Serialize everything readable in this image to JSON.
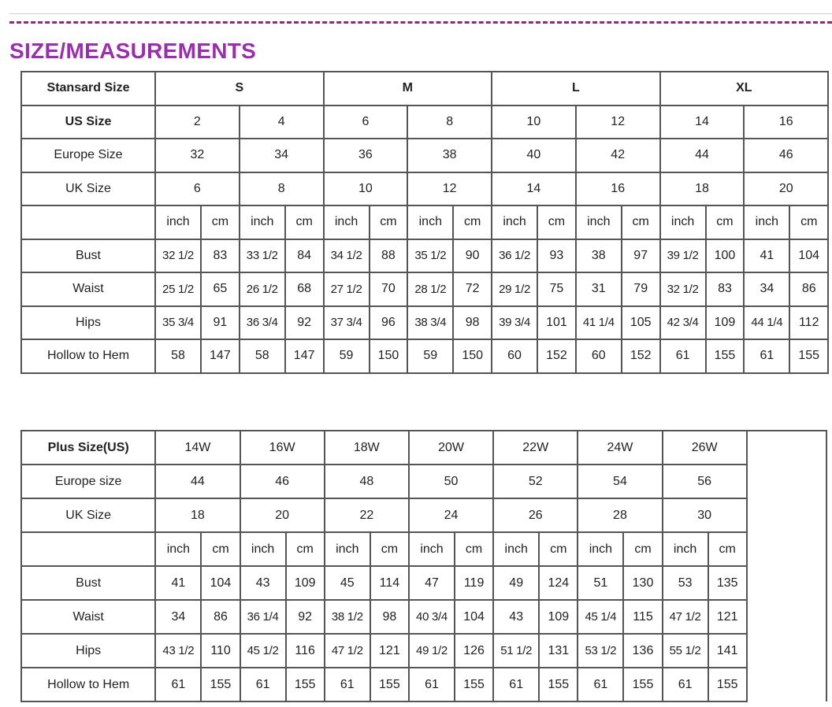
{
  "title": "SIZE/MEASUREMENTS",
  "colors": {
    "title": "#9a2fae",
    "dash": "#8a2a7e",
    "border": "#555555"
  },
  "standard_table": {
    "header_label": "Stansard Size",
    "groups": [
      "S",
      "M",
      "L",
      "XL"
    ],
    "size_rows": [
      {
        "label": "US Size",
        "values": [
          "2",
          "4",
          "6",
          "8",
          "10",
          "12",
          "14",
          "16"
        ]
      },
      {
        "label": "Europe Size",
        "values": [
          "32",
          "34",
          "36",
          "38",
          "40",
          "42",
          "44",
          "46"
        ]
      },
      {
        "label": "UK Size",
        "values": [
          "6",
          "8",
          "10",
          "12",
          "14",
          "16",
          "18",
          "20"
        ]
      }
    ],
    "units": [
      "inch",
      "cm"
    ],
    "measure_rows": [
      {
        "label": "Bust",
        "values": [
          "32 1/2",
          "83",
          "33 1/2",
          "84",
          "34 1/2",
          "88",
          "35 1/2",
          "90",
          "36 1/2",
          "93",
          "38",
          "97",
          "39 1/2",
          "100",
          "41",
          "104"
        ]
      },
      {
        "label": "Waist",
        "values": [
          "25 1/2",
          "65",
          "26 1/2",
          "68",
          "27 1/2",
          "70",
          "28 1/2",
          "72",
          "29 1/2",
          "75",
          "31",
          "79",
          "32 1/2",
          "83",
          "34",
          "86"
        ]
      },
      {
        "label": "Hips",
        "values": [
          "35 3/4",
          "91",
          "36 3/4",
          "92",
          "37 3/4",
          "96",
          "38 3/4",
          "98",
          "39 3/4",
          "101",
          "41 1/4",
          "105",
          "42 3/4",
          "109",
          "44 1/4",
          "112"
        ]
      },
      {
        "label": "Hollow to Hem",
        "values": [
          "58",
          "147",
          "58",
          "147",
          "59",
          "150",
          "59",
          "150",
          "60",
          "152",
          "60",
          "152",
          "61",
          "155",
          "61",
          "155"
        ]
      }
    ]
  },
  "plus_table": {
    "header_label": "Plus Size(US)",
    "sizes": [
      "14W",
      "16W",
      "18W",
      "20W",
      "22W",
      "24W",
      "26W"
    ],
    "size_rows": [
      {
        "label": "Europe size",
        "values": [
          "44",
          "46",
          "48",
          "50",
          "52",
          "54",
          "56"
        ]
      },
      {
        "label": "UK Size",
        "values": [
          "18",
          "20",
          "22",
          "24",
          "26",
          "28",
          "30"
        ]
      }
    ],
    "units": [
      "inch",
      "cm"
    ],
    "measure_rows": [
      {
        "label": "Bust",
        "values": [
          "41",
          "104",
          "43",
          "109",
          "45",
          "114",
          "47",
          "119",
          "49",
          "124",
          "51",
          "130",
          "53",
          "135"
        ]
      },
      {
        "label": "Waist",
        "values": [
          "34",
          "86",
          "36 1/4",
          "92",
          "38 1/2",
          "98",
          "40 3/4",
          "104",
          "43",
          "109",
          "45 1/4",
          "115",
          "47 1/2",
          "121"
        ]
      },
      {
        "label": "Hips",
        "values": [
          "43 1/2",
          "110",
          "45 1/2",
          "116",
          "47 1/2",
          "121",
          "49 1/2",
          "126",
          "51 1/2",
          "131",
          "53 1/2",
          "136",
          "55 1/2",
          "141"
        ]
      },
      {
        "label": "Hollow to Hem",
        "values": [
          "61",
          "155",
          "61",
          "155",
          "61",
          "155",
          "61",
          "155",
          "61",
          "155",
          "61",
          "155",
          "61",
          "155"
        ]
      }
    ]
  }
}
